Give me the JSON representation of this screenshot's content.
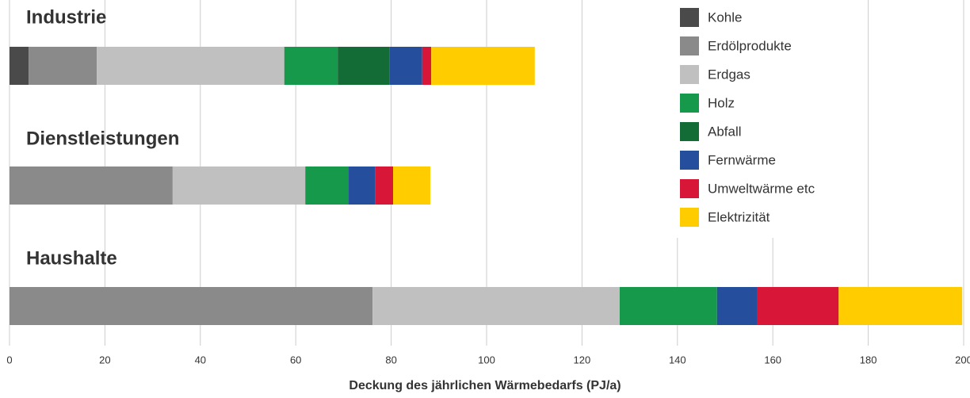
{
  "chart_data": {
    "type": "stacked-bar-horizontal",
    "x_label": "Deckung des jährlichen Wärmebedarfs (PJ/a)",
    "categories": [
      "Industrie",
      "Dienstleistungen",
      "Haushalte"
    ],
    "series": [
      {
        "name": "Kohle",
        "color": "#4a4a4a",
        "values": [
          4.0,
          0,
          0
        ]
      },
      {
        "name": "Erdölprodukte",
        "color": "#8a8a8a",
        "values": [
          14.3,
          34.2,
          76.1
        ]
      },
      {
        "name": "Erdgas",
        "color": "#c0c0c0",
        "values": [
          39.3,
          27.8,
          51.8
        ]
      },
      {
        "name": "Holz",
        "color": "#16994a",
        "values": [
          11.2,
          9.1,
          20.4
        ]
      },
      {
        "name": "Abfall",
        "color": "#136b36",
        "values": [
          10.8,
          0,
          0
        ]
      },
      {
        "name": "Fernwärme",
        "color": "#254e9d",
        "values": [
          6.9,
          5.5,
          8.5
        ]
      },
      {
        "name": "Umweltwärme etc",
        "color": "#d81637",
        "values": [
          1.9,
          3.8,
          17.0
        ]
      },
      {
        "name": "Elektrizität",
        "color": "#ffcc00",
        "values": [
          21.7,
          7.8,
          25.9
        ]
      }
    ],
    "xlim": [
      0,
      200
    ],
    "xticks": [
      0,
      20,
      40,
      60,
      80,
      100,
      120,
      140,
      160,
      180,
      200
    ],
    "grid": true
  }
}
